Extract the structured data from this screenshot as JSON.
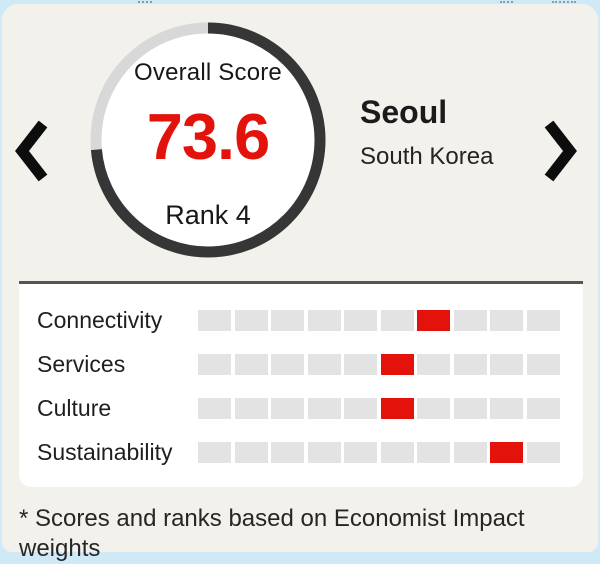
{
  "header": {
    "gauge": {
      "label": "Overall Score",
      "score": "73.6",
      "score_value": 73.6,
      "max": 100,
      "rank": "Rank 4"
    },
    "city": {
      "name": "Seoul",
      "country": "South Korea"
    },
    "nav": {
      "prev_icon": "chevron-left",
      "next_icon": "chevron-right"
    }
  },
  "chart": {
    "rows": [
      {
        "label": "Connectivity",
        "segments": 10,
        "red_index": 7
      },
      {
        "label": "Services",
        "segments": 10,
        "red_index": 6
      },
      {
        "label": "Culture",
        "segments": 10,
        "red_index": 6
      },
      {
        "label": "Sustainability",
        "segments": 10,
        "red_index": 9
      }
    ]
  },
  "footnote": "* Scores and ranks based on Economist Impact weights",
  "colors": {
    "backdrop": "#cfe9f7",
    "card": "#f3f1ec",
    "red": "#e3120b",
    "ring_dark": "#363636",
    "ring_light": "#d8d8d8",
    "segment_gray": "#e4e3e3",
    "text": "#1c1c1c",
    "panel_border": "#555555"
  },
  "chart_data": [
    {
      "type": "pie",
      "subtype": "donut-gauge",
      "title": "Overall Score",
      "center_label": "73.6",
      "sub_label": "Rank 4",
      "entity": "Seoul, South Korea",
      "values": [
        73.6,
        26.4
      ],
      "labels": [
        "score (dark arc)",
        "remainder (light arc)"
      ],
      "range": [
        0,
        100
      ],
      "start_angle_deg": 0,
      "direction": "clockwise"
    },
    {
      "type": "bar",
      "subtype": "segmented-rank",
      "categories": [
        "Connectivity",
        "Services",
        "Culture",
        "Sustainability"
      ],
      "values": [
        7,
        6,
        6,
        9
      ],
      "segments_per_row": 10,
      "note": "red block position within 10 gray segments, counted from the left"
    }
  ]
}
